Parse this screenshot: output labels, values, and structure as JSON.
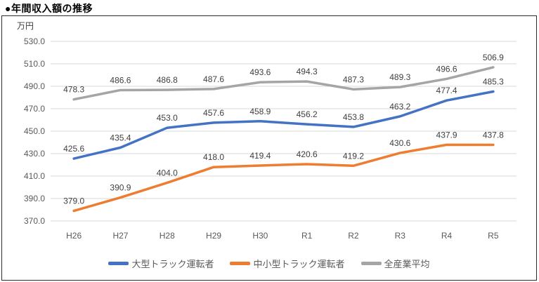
{
  "header": {
    "title": "●年間収入額の推移"
  },
  "chart_data": {
    "type": "line",
    "title": "年間収入額の推移",
    "ylabel": "万円",
    "xlabel": "",
    "categories": [
      "H26",
      "H27",
      "H28",
      "H29",
      "H30",
      "R1",
      "R2",
      "R3",
      "R4",
      "R5"
    ],
    "series": [
      {
        "name": "大型トラック運転者",
        "color": "#4472C4",
        "values": [
          425.6,
          435.4,
          453.0,
          457.6,
          458.9,
          456.2,
          453.8,
          463.2,
          477.4,
          485.3
        ]
      },
      {
        "name": "中小型トラック運転者",
        "color": "#ED7D31",
        "values": [
          379.0,
          390.9,
          404.0,
          418.0,
          419.4,
          420.6,
          419.2,
          430.6,
          437.9,
          437.8
        ]
      },
      {
        "name": "全産業平均",
        "color": "#A5A5A5",
        "values": [
          478.3,
          486.6,
          486.8,
          487.6,
          493.6,
          494.3,
          487.3,
          489.3,
          496.6,
          506.9
        ]
      }
    ],
    "ylim": [
      370.0,
      530.0
    ],
    "ytick_step": 20,
    "ytick_decimals": 1,
    "data_label_decimals": 1,
    "grid": true,
    "legend_position": "bottom"
  },
  "colors": {
    "gridline": "#D9D9D9",
    "tick_label": "#595959",
    "data_label": "#404040",
    "frame_border": "#2b2b2b"
  }
}
